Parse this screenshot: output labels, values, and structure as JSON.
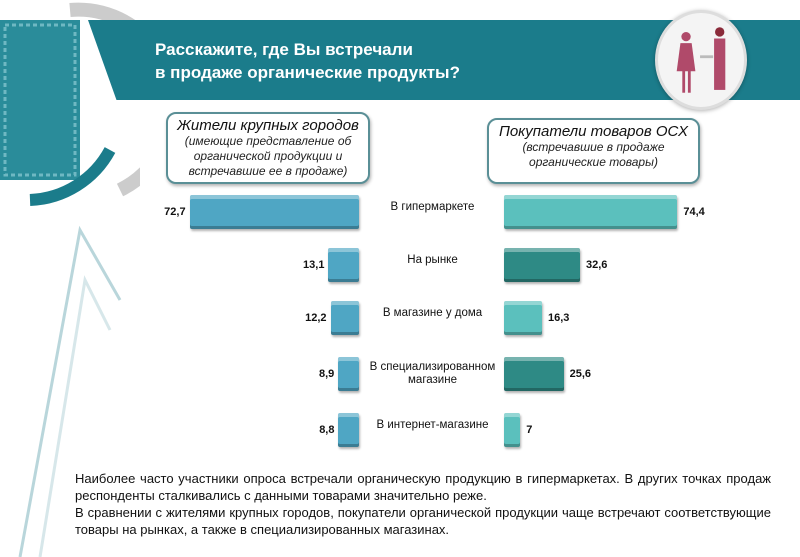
{
  "header": {
    "title_line1": "Расскажите, где Вы встречали",
    "title_line2": "в продаже органические продукты?"
  },
  "colors": {
    "banner": "#1b7c8b",
    "left": "#4fa6c4",
    "right_light": "#5bc0bd",
    "right_dark": "#2e8a85"
  },
  "chart_data": {
    "type": "bar",
    "categories": [
      "В гипермаркете",
      "На рынке",
      "В магазине у дома",
      "В специализированном магазине",
      "В интернет-магазине"
    ],
    "series": [
      {
        "name": "Жители крупных городов",
        "subtitle": "(имеющие представление об органической продукции и встречавшие ее в продаже)",
        "values": [
          72.7,
          13.1,
          12.2,
          8.9,
          8.8
        ],
        "labels": [
          "72,7",
          "13,1",
          "12,2",
          "8,9",
          "8,8"
        ]
      },
      {
        "name": "Покупатели товаров ОСХ",
        "subtitle": "(встречавшие в продаже органические товары)",
        "values": [
          74.4,
          32.6,
          16.3,
          25.6,
          7
        ],
        "labels": [
          "74,4",
          "32,6",
          "16,3",
          "25,6",
          "7"
        ]
      }
    ]
  },
  "note": {
    "p1": "Наиболее часто участники опроса встречали органическую продукцию в гипермаркетах. В других точках продаж респонденты сталкивались с данными товарами значительно реже.",
    "p2": "В сравнении с жителями крупных городов, покупатели органической продукции чаще встречают соответствующие товары на рынках, а также в специализированных магазинах."
  }
}
